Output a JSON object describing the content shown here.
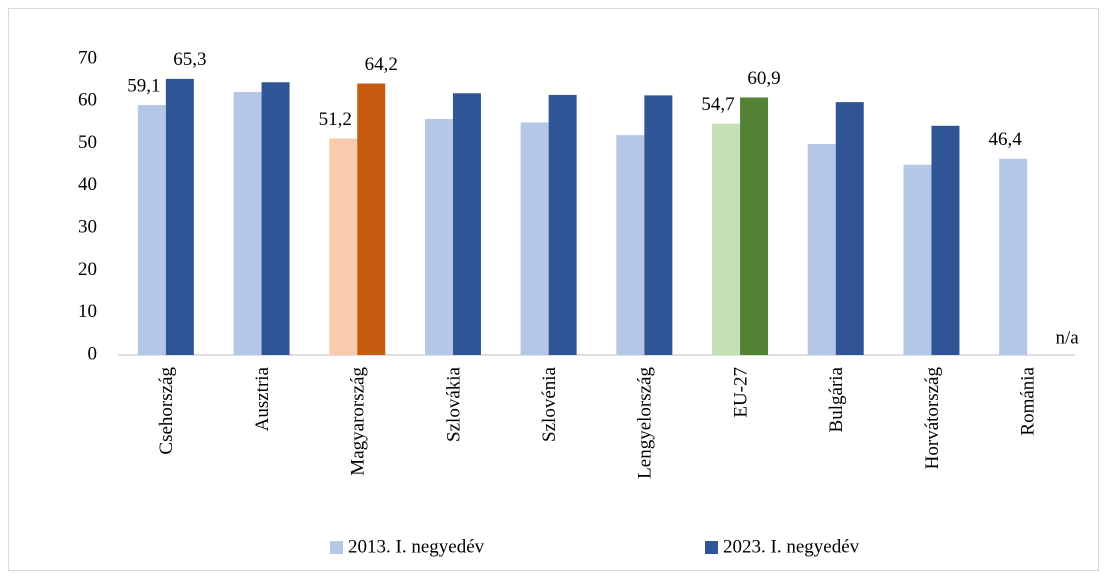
{
  "chart_data": {
    "type": "bar",
    "categories": [
      "Csehország",
      "Ausztria",
      "Magyarország",
      "Szlovákia",
      "Szlovénia",
      "Lengyelország",
      "EU-27",
      "Bulgária",
      "Horvátország",
      "Románia"
    ],
    "series": [
      {
        "name": "2013. I. negyedév",
        "color": "#b4c7e7",
        "colors": [
          "#b4c7e7",
          "#b4c7e7",
          "#f8cbad",
          "#b4c7e7",
          "#b4c7e7",
          "#b4c7e7",
          "#c5e0b4",
          "#b4c7e7",
          "#b4c7e7",
          "#b4c7e7"
        ],
        "values": [
          59.1,
          62.2,
          51.2,
          55.8,
          55.0,
          52.0,
          54.7,
          49.9,
          45.0,
          46.4
        ],
        "value_labels": [
          "59,1",
          null,
          "51,2",
          null,
          null,
          null,
          "54,7",
          null,
          null,
          "46,4"
        ]
      },
      {
        "name": "2023. I. negyedév",
        "color": "#2f5597",
        "colors": [
          "#2f5597",
          "#2f5597",
          "#c55a11",
          "#2f5597",
          "#2f5597",
          "#2f5597",
          "#548235",
          "#2f5597",
          "#2f5597",
          "#2f5597"
        ],
        "values": [
          65.3,
          64.5,
          64.2,
          61.9,
          61.5,
          61.4,
          60.9,
          59.8,
          54.2,
          null
        ],
        "value_labels": [
          "65,3",
          null,
          "64,2",
          null,
          null,
          null,
          "60,9",
          null,
          null,
          "n/a"
        ]
      }
    ],
    "ylim": [
      0,
      70
    ],
    "yticks": [
      0,
      10,
      20,
      30,
      40,
      50,
      60,
      70
    ],
    "grid": false,
    "legend": "bottom"
  }
}
